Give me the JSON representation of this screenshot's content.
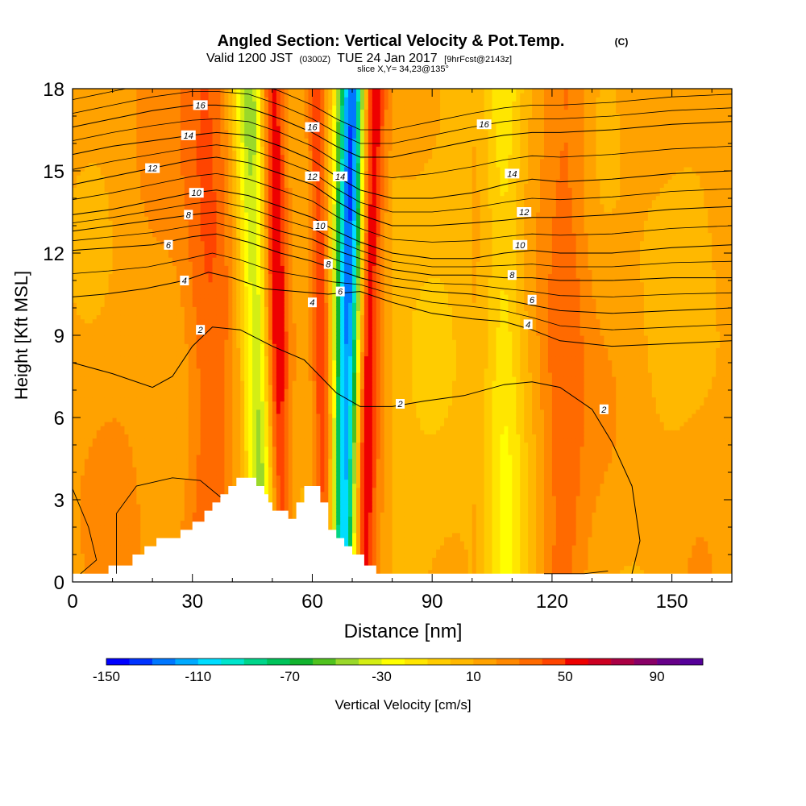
{
  "title": {
    "main": "Angled Section: Vertical Velocity & Pot.Temp.",
    "main_units": "(C)",
    "valid_prefix": "Valid 1200 JST",
    "valid_zone": "(0300Z)",
    "valid_date": "TUE 24 Jan 2017",
    "valid_fcst": "[9hrFcst@2143z]",
    "slice": "slice X,Y= 34,23@135°"
  },
  "chart_data": {
    "type": "heatmap",
    "xlabel": "Distance [nm]",
    "ylabel": "Height [Kft MSL]",
    "xlim": [
      0,
      165
    ],
    "ylim": [
      0,
      18
    ],
    "x_ticks": [
      "0",
      "30",
      "60",
      "90",
      "120",
      "150"
    ],
    "y_ticks": [
      "0",
      "3",
      "6",
      "9",
      "12",
      "15",
      "18"
    ],
    "x_tick_values": [
      0,
      30,
      60,
      90,
      120,
      150
    ],
    "y_tick_values": [
      0,
      3,
      6,
      9,
      12,
      15,
      18
    ],
    "colorbar": {
      "label": "Vertical Velocity [cm/s]",
      "min": -150,
      "max": 110,
      "step": 10,
      "tick_labels": [
        "-150",
        "-110",
        "-70",
        "-30",
        "10",
        "50",
        "90"
      ],
      "tick_values": [
        -150,
        -110,
        -70,
        -30,
        10,
        50,
        90
      ],
      "colors": [
        "#0000ff",
        "#0033ff",
        "#0077ff",
        "#00aaff",
        "#00ddff",
        "#00e5cc",
        "#00d58a",
        "#00c35a",
        "#12b32e",
        "#50c21e",
        "#9ad82a",
        "#d4ee14",
        "#ffff00",
        "#ffe600",
        "#ffcc00",
        "#ffb800",
        "#ffa200",
        "#ff8800",
        "#ff6a00",
        "#ff4400",
        "#ee0000",
        "#cc0022",
        "#aa0044",
        "#880066",
        "#660088",
        "#550099"
      ]
    },
    "velocity_features": [
      {
        "kind": "downdraft",
        "value": -60,
        "x_bottom": 48,
        "x_top": 44,
        "half_width": 4
      },
      {
        "kind": "updraft",
        "value": 50,
        "x_bottom": 52,
        "x_top": 50,
        "half_width": 3
      },
      {
        "kind": "updraft",
        "value": 40,
        "x_bottom": 64,
        "x_top": 61,
        "half_width": 2.5
      },
      {
        "kind": "downdraft",
        "value": -140,
        "x_bottom": 68,
        "x_top": 70,
        "half_width": 3.5
      },
      {
        "kind": "updraft",
        "value": 60,
        "x_bottom": 72,
        "x_top": 75,
        "half_width": 3
      },
      {
        "kind": "updraft",
        "value": 25,
        "x_bottom": 34,
        "x_top": 34,
        "half_width": 6
      },
      {
        "kind": "downdraft",
        "value": -30,
        "x_bottom": 108,
        "x_top": 108,
        "half_width": 5
      },
      {
        "kind": "updraft",
        "value": 25,
        "x_bottom": 122,
        "x_top": 124,
        "half_width": 6
      }
    ],
    "terrain": [
      [
        0,
        0.3
      ],
      [
        9,
        0.3
      ],
      [
        9,
        0.6
      ],
      [
        15,
        0.6
      ],
      [
        15,
        1.0
      ],
      [
        18,
        1.0
      ],
      [
        18,
        1.3
      ],
      [
        21,
        1.3
      ],
      [
        21,
        1.6
      ],
      [
        27,
        1.6
      ],
      [
        27,
        1.9
      ],
      [
        30,
        1.9
      ],
      [
        30,
        2.2
      ],
      [
        33,
        2.2
      ],
      [
        33,
        2.6
      ],
      [
        35,
        2.6
      ],
      [
        35,
        2.9
      ],
      [
        37,
        2.9
      ],
      [
        37,
        3.2
      ],
      [
        39,
        3.2
      ],
      [
        39,
        3.5
      ],
      [
        41,
        3.5
      ],
      [
        41,
        3.8
      ],
      [
        46,
        3.8
      ],
      [
        46,
        3.5
      ],
      [
        48,
        3.5
      ],
      [
        48,
        3.2
      ],
      [
        49,
        3.2
      ],
      [
        49,
        2.9
      ],
      [
        50,
        2.9
      ],
      [
        50,
        2.6
      ],
      [
        54,
        2.6
      ],
      [
        54,
        2.3
      ],
      [
        56,
        2.3
      ],
      [
        56,
        2.9
      ],
      [
        58,
        2.9
      ],
      [
        58,
        3.5
      ],
      [
        62,
        3.5
      ],
      [
        62,
        2.9
      ],
      [
        64,
        2.9
      ],
      [
        64,
        1.9
      ],
      [
        66,
        1.9
      ],
      [
        66,
        1.6
      ],
      [
        68,
        1.6
      ],
      [
        68,
        1.3
      ],
      [
        70,
        1.3
      ],
      [
        70,
        1.0
      ],
      [
        73,
        1.0
      ],
      [
        73,
        0.6
      ],
      [
        76,
        0.6
      ],
      [
        76,
        0.3
      ],
      [
        165,
        0.3
      ]
    ],
    "isentropes": [
      {
        "label": "2",
        "label_x": 32,
        "points": [
          [
            0,
            8
          ],
          [
            10,
            7.6
          ],
          [
            20,
            7.1
          ],
          [
            25,
            7.5
          ],
          [
            30,
            8.6
          ],
          [
            35,
            9.3
          ],
          [
            42,
            9.2
          ],
          [
            50,
            8.6
          ],
          [
            58,
            8.1
          ],
          [
            62,
            7.5
          ],
          [
            66,
            6.9
          ],
          [
            72,
            6.4
          ],
          [
            80,
            6.4
          ],
          [
            88,
            6.6
          ],
          [
            98,
            6.8
          ],
          [
            108,
            7.2
          ],
          [
            115,
            7.3
          ],
          [
            122,
            7.1
          ],
          [
            130,
            6.3
          ],
          [
            135,
            5.1
          ],
          [
            140,
            3.5
          ],
          [
            142,
            1.5
          ],
          [
            140,
            0.3
          ]
        ]
      },
      {
        "label": "4",
        "label_x": 28,
        "points": [
          [
            0,
            10.4
          ],
          [
            8,
            10.5
          ],
          [
            18,
            10.7
          ],
          [
            28,
            11.0
          ],
          [
            34,
            11.3
          ],
          [
            40,
            11.1
          ],
          [
            48,
            10.7
          ],
          [
            56,
            10.6
          ],
          [
            64,
            10.5
          ],
          [
            72,
            10.6
          ],
          [
            80,
            10.2
          ],
          [
            90,
            9.8
          ],
          [
            100,
            9.6
          ],
          [
            108,
            9.5
          ],
          [
            115,
            9.2
          ],
          [
            122,
            8.8
          ],
          [
            135,
            8.6
          ],
          [
            150,
            8.7
          ],
          [
            165,
            8.8
          ]
        ]
      },
      {
        "label": "6",
        "label_x": 24,
        "points": [
          [
            0,
            12.1
          ],
          [
            10,
            12.2
          ],
          [
            20,
            12.3
          ],
          [
            30,
            12.6
          ],
          [
            36,
            12.7
          ],
          [
            44,
            12.4
          ],
          [
            52,
            12.0
          ],
          [
            60,
            11.7
          ],
          [
            66,
            11.4
          ],
          [
            72,
            11.1
          ],
          [
            80,
            10.8
          ],
          [
            90,
            10.6
          ],
          [
            100,
            10.5
          ],
          [
            108,
            10.3
          ],
          [
            115,
            10.1
          ],
          [
            122,
            9.9
          ],
          [
            135,
            9.8
          ],
          [
            150,
            9.9
          ],
          [
            165,
            10.0
          ]
        ]
      },
      {
        "label": "8",
        "label_x": 29,
        "points": [
          [
            0,
            12.8
          ],
          [
            10,
            13.0
          ],
          [
            20,
            13.2
          ],
          [
            30,
            13.4
          ],
          [
            36,
            13.5
          ],
          [
            44,
            13.2
          ],
          [
            52,
            12.8
          ],
          [
            60,
            12.5
          ],
          [
            66,
            12.1
          ],
          [
            72,
            11.8
          ],
          [
            80,
            11.4
          ],
          [
            90,
            11.2
          ],
          [
            100,
            11.2
          ],
          [
            108,
            11.1
          ],
          [
            115,
            11.1
          ],
          [
            122,
            11.0
          ],
          [
            135,
            11.0
          ],
          [
            150,
            11.1
          ],
          [
            165,
            11.1
          ]
        ]
      },
      {
        "label": "10",
        "label_x": 31,
        "points": [
          [
            0,
            13.4
          ],
          [
            10,
            13.6
          ],
          [
            20,
            13.9
          ],
          [
            30,
            14.2
          ],
          [
            36,
            14.3
          ],
          [
            44,
            14.1
          ],
          [
            52,
            13.7
          ],
          [
            60,
            13.3
          ],
          [
            66,
            12.8
          ],
          [
            72,
            12.4
          ],
          [
            80,
            12.0
          ],
          [
            90,
            11.8
          ],
          [
            100,
            11.8
          ],
          [
            108,
            12.0
          ],
          [
            115,
            12.1
          ],
          [
            122,
            12.0
          ],
          [
            135,
            12.0
          ],
          [
            150,
            12.2
          ],
          [
            165,
            12.3
          ]
        ]
      },
      {
        "label": "12",
        "label_x": 21,
        "points": [
          [
            0,
            14.5
          ],
          [
            10,
            14.8
          ],
          [
            20,
            15.1
          ],
          [
            30,
            15.4
          ],
          [
            36,
            15.5
          ],
          [
            44,
            15.3
          ],
          [
            52,
            14.9
          ],
          [
            60,
            14.5
          ],
          [
            66,
            13.9
          ],
          [
            72,
            13.4
          ],
          [
            80,
            13.0
          ],
          [
            90,
            13.0
          ],
          [
            100,
            13.1
          ],
          [
            108,
            13.2
          ],
          [
            115,
            13.3
          ],
          [
            122,
            13.3
          ],
          [
            135,
            13.4
          ],
          [
            150,
            13.6
          ],
          [
            165,
            13.7
          ]
        ]
      },
      {
        "label": "14",
        "label_x": 29,
        "points": [
          [
            0,
            15.6
          ],
          [
            10,
            15.9
          ],
          [
            20,
            16.1
          ],
          [
            30,
            16.3
          ],
          [
            36,
            16.4
          ],
          [
            44,
            16.3
          ],
          [
            52,
            15.9
          ],
          [
            60,
            15.4
          ],
          [
            66,
            14.8
          ],
          [
            72,
            14.3
          ],
          [
            80,
            14.0
          ],
          [
            90,
            14.0
          ],
          [
            100,
            14.2
          ],
          [
            108,
            14.5
          ],
          [
            115,
            14.7
          ],
          [
            122,
            14.6
          ],
          [
            135,
            14.7
          ],
          [
            150,
            14.9
          ],
          [
            165,
            15.0
          ]
        ]
      },
      {
        "label": "16",
        "label_x": 32,
        "points": [
          [
            0,
            16.6
          ],
          [
            10,
            16.9
          ],
          [
            20,
            17.2
          ],
          [
            30,
            17.4
          ],
          [
            36,
            17.4
          ],
          [
            44,
            17.3
          ],
          [
            52,
            16.9
          ],
          [
            60,
            16.4
          ],
          [
            66,
            15.9
          ],
          [
            72,
            15.5
          ],
          [
            80,
            15.5
          ],
          [
            90,
            15.8
          ],
          [
            100,
            16.1
          ],
          [
            108,
            16.3
          ],
          [
            115,
            16.4
          ],
          [
            122,
            16.4
          ],
          [
            135,
            16.5
          ],
          [
            150,
            16.7
          ],
          [
            165,
            16.8
          ]
        ]
      }
    ],
    "inner_lines": [
      [
        [
          2,
          0.3
        ],
        [
          6,
          0.8
        ],
        [
          4,
          2.0
        ],
        [
          0,
          3.4
        ]
      ],
      [
        [
          11,
          0.3
        ],
        [
          11,
          2.5
        ],
        [
          16,
          3.5
        ],
        [
          25,
          3.8
        ],
        [
          32,
          3.7
        ],
        [
          37,
          3.1
        ]
      ],
      [
        [
          118,
          0.3
        ],
        [
          128,
          0.3
        ],
        [
          134,
          0.4
        ]
      ]
    ],
    "contour_labels": [
      {
        "text": "16",
        "x": 32,
        "y": 17.4
      },
      {
        "text": "14",
        "x": 29,
        "y": 16.3
      },
      {
        "text": "12",
        "x": 20,
        "y": 15.1
      },
      {
        "text": "10",
        "x": 31,
        "y": 14.2
      },
      {
        "text": "8",
        "x": 29,
        "y": 13.4
      },
      {
        "text": "6",
        "x": 24,
        "y": 12.3
      },
      {
        "text": "4",
        "x": 28,
        "y": 11.0
      },
      {
        "text": "2",
        "x": 32,
        "y": 9.2
      },
      {
        "text": "16",
        "x": 60,
        "y": 16.6
      },
      {
        "text": "12",
        "x": 60,
        "y": 14.8
      },
      {
        "text": "14",
        "x": 67,
        "y": 14.8
      },
      {
        "text": "10",
        "x": 62,
        "y": 13.0
      },
      {
        "text": "8",
        "x": 64,
        "y": 11.6
      },
      {
        "text": "6",
        "x": 67,
        "y": 10.6
      },
      {
        "text": "4",
        "x": 60,
        "y": 10.2
      },
      {
        "text": "16",
        "x": 103,
        "y": 16.7
      },
      {
        "text": "14",
        "x": 110,
        "y": 14.9
      },
      {
        "text": "12",
        "x": 113,
        "y": 13.5
      },
      {
        "text": "10",
        "x": 112,
        "y": 12.3
      },
      {
        "text": "8",
        "x": 110,
        "y": 11.2
      },
      {
        "text": "6",
        "x": 115,
        "y": 10.3
      },
      {
        "text": "4",
        "x": 114,
        "y": 9.4
      },
      {
        "text": "2",
        "x": 82,
        "y": 6.5
      },
      {
        "text": "2",
        "x": 133,
        "y": 6.3
      }
    ]
  }
}
